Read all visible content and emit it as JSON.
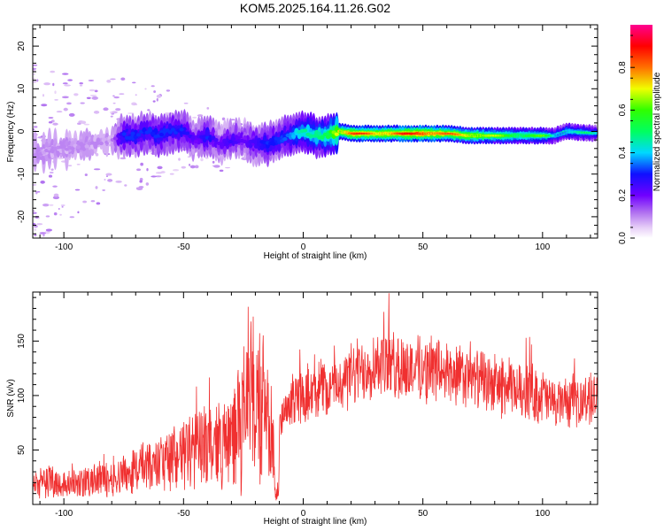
{
  "title": "KOM5.2025.164.11.26.G02",
  "chart_data": [
    {
      "type": "heatmap",
      "xlabel": "Height of straight line (km)",
      "ylabel": "Frequency (Hz)",
      "xlim": [
        -113,
        123
      ],
      "ylim": [
        -25,
        25
      ],
      "xticks": [
        -100,
        -50,
        0,
        50,
        100
      ],
      "yticks": [
        -20,
        -10,
        0,
        10,
        20
      ],
      "colorbar": {
        "label": "Normalized spectral amplitude",
        "range": [
          0,
          1
        ],
        "ticks": [
          0.0,
          0.2,
          0.4,
          0.6,
          0.8
        ],
        "tick_labels": [
          "0.0",
          "0.2",
          "0.4",
          "0.6",
          "0.8"
        ],
        "colors": [
          "#ffffff",
          "#c8a0f0",
          "#7a00ff",
          "#1010ff",
          "#00e0ff",
          "#00ff30",
          "#f0ff00",
          "#ff8000",
          "#ff0000",
          "#ff0080"
        ]
      },
      "ridge": {
        "x": [
          -110,
          -100,
          -90,
          -80,
          -75,
          -70,
          -65,
          -60,
          -55,
          -50,
          -45,
          -40,
          -35,
          -30,
          -25,
          -20,
          -15,
          -10,
          -5,
          0,
          5,
          10,
          15,
          20,
          30,
          40,
          50,
          60,
          70,
          80,
          90,
          100,
          105,
          110,
          123
        ],
        "freq": [
          -5,
          -4,
          -3,
          -2,
          -1,
          -1,
          0,
          -1,
          0,
          0,
          -2,
          -1,
          -3,
          -2,
          -2,
          -3,
          -3,
          -2,
          -1,
          0,
          -1,
          -1,
          0,
          -0.5,
          -0.5,
          -0.5,
          -0.5,
          -0.5,
          -1,
          -1,
          -1,
          -1,
          -1,
          0,
          -0.5
        ],
        "amplitude": [
          0.1,
          0.1,
          0.1,
          0.1,
          0.3,
          0.3,
          0.3,
          0.3,
          0.3,
          0.3,
          0.2,
          0.3,
          0.2,
          0.25,
          0.2,
          0.25,
          0.3,
          0.3,
          0.35,
          0.45,
          0.45,
          0.5,
          0.7,
          0.8,
          0.75,
          0.8,
          0.85,
          0.75,
          0.7,
          0.6,
          0.55,
          0.55,
          0.4,
          0.45,
          0.4
        ]
      }
    },
    {
      "type": "line",
      "xlabel": "Height of straight line (km)",
      "ylabel": "SNR (v/v)",
      "xlim": [
        -113,
        123
      ],
      "ylim": [
        0,
        195
      ],
      "xticks": [
        -100,
        -50,
        0,
        50,
        100
      ],
      "yticks": [
        50,
        100,
        150
      ],
      "color": "#f03030",
      "series": [
        {
          "x": [
            -113,
            -105,
            -100,
            -90,
            -80,
            -70,
            -60,
            -50,
            -45,
            -40,
            -35,
            -30,
            -27,
            -25,
            -23,
            -21,
            -18,
            -15,
            -12,
            -10,
            -5,
            0,
            5,
            10,
            20,
            30,
            35,
            40,
            50,
            60,
            70,
            80,
            90,
            100,
            106,
            110,
            115,
            123
          ],
          "y": [
            18,
            22,
            18,
            20,
            25,
            32,
            38,
            45,
            50,
            55,
            55,
            60,
            75,
            70,
            110,
            90,
            95,
            80,
            35,
            70,
            95,
            100,
            110,
            105,
            118,
            130,
            130,
            125,
            125,
            120,
            115,
            110,
            105,
            100,
            92,
            95,
            95,
            98
          ]
        }
      ]
    }
  ]
}
